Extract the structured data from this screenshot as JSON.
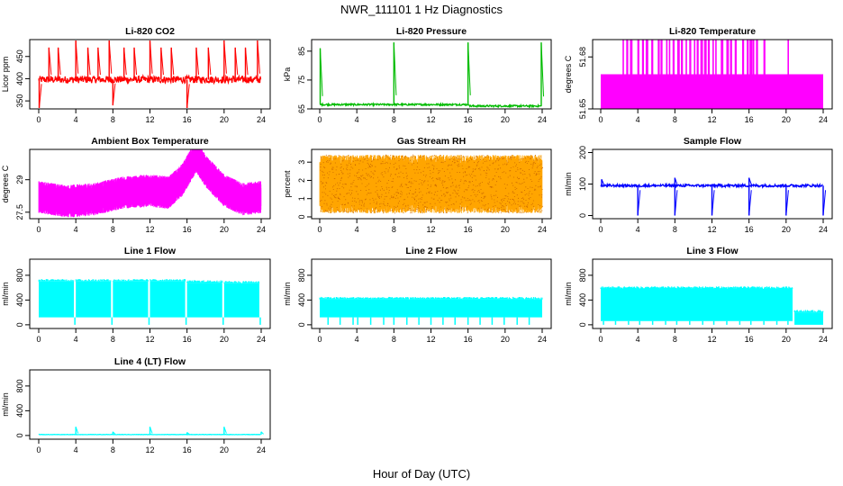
{
  "figure": {
    "title": "NWR_111101  1 Hz Diagnostics",
    "xlabel": "Hour of Day (UTC)"
  },
  "chart_data": [
    {
      "id": "co2",
      "type": "line",
      "title": "Li-820 CO2",
      "ylabel": "Licor ppm",
      "color": "#ff0000",
      "xlim": [
        0,
        24
      ],
      "ylim": [
        332,
        488
      ],
      "xticks": [
        "0",
        "4",
        "8",
        "12",
        "16",
        "20",
        "24"
      ],
      "yticks": [
        350,
        400,
        450
      ],
      "baseline": 398,
      "noise": 8,
      "end": 24,
      "spikes": [
        {
          "x": 0.05,
          "v": 332
        },
        {
          "x": 1.1,
          "v": 470
        },
        {
          "x": 2.1,
          "v": 470
        },
        {
          "x": 4.0,
          "v": 488
        },
        {
          "x": 5.3,
          "v": 470
        },
        {
          "x": 6.4,
          "v": 470
        },
        {
          "x": 7.6,
          "v": 488
        },
        {
          "x": 8.0,
          "v": 340
        },
        {
          "x": 9.2,
          "v": 470
        },
        {
          "x": 10.3,
          "v": 470
        },
        {
          "x": 12.0,
          "v": 488
        },
        {
          "x": 13.2,
          "v": 470
        },
        {
          "x": 14.3,
          "v": 470
        },
        {
          "x": 16.0,
          "v": 330
        },
        {
          "x": 17.0,
          "v": 470
        },
        {
          "x": 18.3,
          "v": 470
        },
        {
          "x": 20.0,
          "v": 488
        },
        {
          "x": 21.2,
          "v": 470
        },
        {
          "x": 22.3,
          "v": 470
        },
        {
          "x": 23.6,
          "v": 488
        }
      ]
    },
    {
      "id": "pressure",
      "type": "line",
      "title": "Li-820 Pressure",
      "ylabel": "kPa",
      "color": "#00bb00",
      "xlim": [
        0,
        24
      ],
      "ylim": [
        65,
        89
      ],
      "xticks": [
        "0",
        "4",
        "8",
        "12",
        "16",
        "20",
        "24"
      ],
      "yticks": [
        65,
        75,
        85
      ],
      "baseline": 66.5,
      "noise": 0.3,
      "end": 24,
      "step": {
        "x": 16.2,
        "v": 66.0
      },
      "spikes": [
        {
          "x": 0.05,
          "v": 86
        },
        {
          "x": 8.0,
          "v": 88
        },
        {
          "x": 16.0,
          "v": 88
        },
        {
          "x": 23.9,
          "v": 88
        }
      ]
    },
    {
      "id": "licor_temp",
      "type": "bar",
      "title": "Li-820 Temperature",
      "ylabel": "degrees C",
      "color": "#ff00ff",
      "xlim": [
        0,
        24
      ],
      "ylim": [
        51.65,
        51.69
      ],
      "xticks": [
        "0",
        "4",
        "8",
        "12",
        "16",
        "20",
        "24"
      ],
      "yticks": [
        51.65,
        51.68
      ],
      "fill_level": 51.67,
      "top": 51.69,
      "end": 24,
      "bursts": [
        2.4,
        2.8,
        3.2,
        4.0,
        4.5,
        4.9,
        5.5,
        6.2,
        6.5,
        7.1,
        7.4,
        7.8,
        8.3,
        8.7,
        9.2,
        9.6,
        10.1,
        10.4,
        10.8,
        11.2,
        11.6,
        12.1,
        12.4,
        13.0,
        13.6,
        14.0,
        14.5,
        15.3,
        15.8,
        16.1,
        16.4,
        16.8,
        17.6,
        20.2
      ]
    },
    {
      "id": "box_temp",
      "type": "line",
      "title": "Ambient Box Temperature",
      "ylabel": "degrees C",
      "color": "#ff00ff",
      "xlim": [
        0,
        24
      ],
      "ylim": [
        27.2,
        30.4
      ],
      "xticks": [
        "0",
        "4",
        "8",
        "12",
        "16",
        "20",
        "24"
      ],
      "yticks": [
        27.5,
        29.0
      ],
      "profile": [
        [
          0,
          28.2
        ],
        [
          3,
          28.0
        ],
        [
          6,
          28.1
        ],
        [
          9,
          28.4
        ],
        [
          12,
          28.5
        ],
        [
          14,
          28.4
        ],
        [
          15.5,
          29.0
        ],
        [
          17,
          30.1
        ],
        [
          18,
          29.4
        ],
        [
          20,
          28.5
        ],
        [
          22,
          28.1
        ],
        [
          24,
          28.2
        ]
      ],
      "band": 0.75,
      "end": 24
    },
    {
      "id": "rh",
      "type": "line",
      "title": "Gas Stream RH",
      "ylabel": "percent",
      "color": "#ffa500",
      "xlim": [
        0,
        24
      ],
      "ylim": [
        -0.1,
        3.7
      ],
      "xticks": [
        "0",
        "4",
        "8",
        "12",
        "16",
        "20",
        "24"
      ],
      "yticks": [
        0,
        1,
        2,
        3
      ],
      "center": 1.8,
      "band": 1.6,
      "end": 24
    },
    {
      "id": "sample_flow",
      "type": "line",
      "title": "Sample Flow",
      "ylabel": "ml/min",
      "color": "#0000ff",
      "xlim": [
        0,
        24
      ],
      "ylim": [
        -10,
        210
      ],
      "xticks": [
        "0",
        "4",
        "8",
        "12",
        "16",
        "20",
        "24"
      ],
      "yticks": [
        0,
        100,
        200
      ],
      "baseline": 95,
      "noise": 4,
      "end": 24,
      "spikes": [
        {
          "x": 0.1,
          "v": 115
        },
        {
          "x": 4.0,
          "v": 0
        },
        {
          "x": 8.0,
          "v": 0
        },
        {
          "x": 8.0,
          "v": 120
        },
        {
          "x": 12.0,
          "v": 0
        },
        {
          "x": 16.0,
          "v": 0
        },
        {
          "x": 16.0,
          "v": 120
        },
        {
          "x": 20.0,
          "v": 0
        },
        {
          "x": 24.0,
          "v": 0
        }
      ]
    },
    {
      "id": "line1",
      "type": "area",
      "title": "Line 1 Flow",
      "ylabel": "ml/min",
      "color": "#00ffff",
      "xlim": [
        0,
        24
      ],
      "ylim": [
        -60,
        1060
      ],
      "xticks": [
        "0",
        "4",
        "8",
        "12",
        "16",
        "20",
        "24"
      ],
      "yticks": [
        0,
        400,
        800
      ],
      "segments": [
        {
          "x0": 0,
          "x1": 3.8,
          "lo": 120,
          "hi": 700
        },
        {
          "x0": 4.0,
          "x1": 7.8,
          "lo": 120,
          "hi": 700
        },
        {
          "x0": 8.0,
          "x1": 11.8,
          "lo": 120,
          "hi": 700
        },
        {
          "x0": 12.0,
          "x1": 15.8,
          "lo": 120,
          "hi": 700
        },
        {
          "x0": 16.0,
          "x1": 19.8,
          "lo": 120,
          "hi": 680
        },
        {
          "x0": 20.0,
          "x1": 23.8,
          "lo": 120,
          "hi": 670
        }
      ],
      "gaps_to_zero": [
        3.9,
        7.9,
        11.9,
        15.9,
        19.9,
        23.9
      ]
    },
    {
      "id": "line2",
      "type": "area",
      "title": "Line 2 Flow",
      "ylabel": "ml/min",
      "color": "#00ffff",
      "xlim": [
        0,
        24
      ],
      "ylim": [
        -60,
        1060
      ],
      "xticks": [
        "0",
        "4",
        "8",
        "12",
        "16",
        "20",
        "24"
      ],
      "yticks": [
        0,
        400,
        800
      ],
      "segments": [
        {
          "x0": 0,
          "x1": 24,
          "lo": 120,
          "hi": 410
        }
      ],
      "gaps_to_zero": [
        0.9,
        2.2,
        3.6,
        4.1,
        5.5,
        6.9,
        8.0,
        9.4,
        10.7,
        12.0,
        13.3,
        14.6,
        16.0,
        17.3,
        18.6,
        19.9,
        21.3,
        22.6
      ]
    },
    {
      "id": "line3",
      "type": "area",
      "title": "Line 3 Flow",
      "ylabel": "ml/min",
      "color": "#00ffff",
      "xlim": [
        0,
        24
      ],
      "ylim": [
        -60,
        1060
      ],
      "xticks": [
        "0",
        "4",
        "8",
        "12",
        "16",
        "20",
        "24"
      ],
      "yticks": [
        0,
        400,
        800
      ],
      "segments": [
        {
          "x0": 0,
          "x1": 20.7,
          "lo": 60,
          "hi": 580
        },
        {
          "x0": 20.9,
          "x1": 24,
          "lo": 0,
          "hi": 200
        }
      ],
      "gaps_to_zero": [
        0.3,
        1.6,
        3.0,
        4.2,
        5.6,
        7.0,
        8.2,
        9.6,
        11.0,
        12.2,
        13.6,
        15.0,
        16.2,
        17.6,
        19.0,
        20.2
      ]
    },
    {
      "id": "line4",
      "type": "line",
      "title": "Line 4 (LT) Flow",
      "ylabel": "ml/min",
      "color": "#00ffff",
      "xlim": [
        0,
        24
      ],
      "ylim": [
        -60,
        1060
      ],
      "xticks": [
        "0",
        "4",
        "8",
        "12",
        "16",
        "20",
        "24"
      ],
      "yticks": [
        0,
        400,
        800
      ],
      "baseline": 15,
      "noise": 3,
      "end": 24,
      "spikes": [
        {
          "x": 4.0,
          "v": 140
        },
        {
          "x": 8.0,
          "v": 60
        },
        {
          "x": 12.0,
          "v": 140
        },
        {
          "x": 16.0,
          "v": 50
        },
        {
          "x": 20.0,
          "v": 140
        },
        {
          "x": 24.0,
          "v": 60
        }
      ]
    }
  ]
}
